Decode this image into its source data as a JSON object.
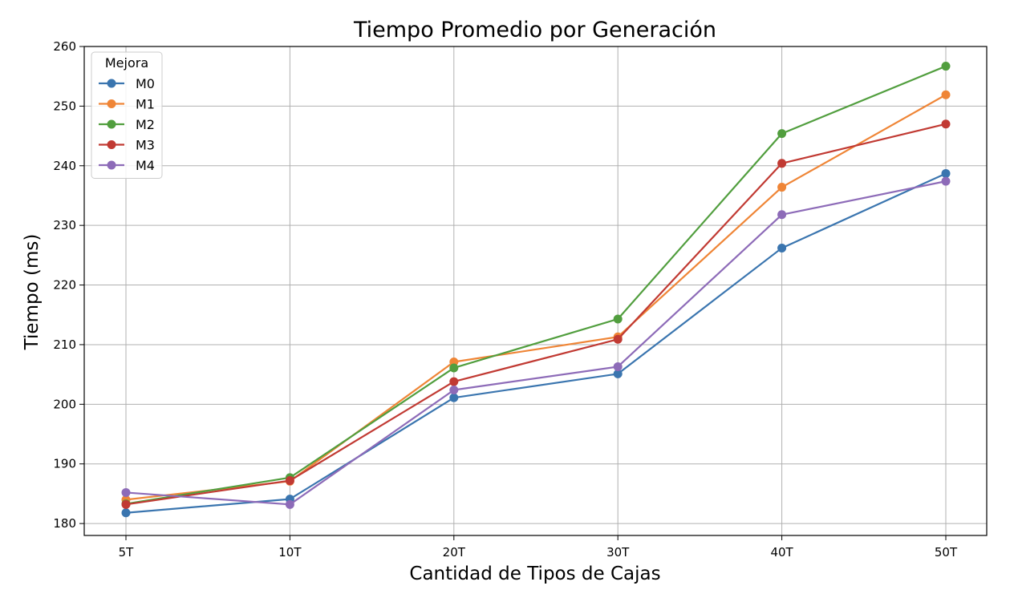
{
  "chart_data": {
    "type": "line",
    "title": "Tiempo Promedio por Generación",
    "xlabel": "Cantidad de Tipos de Cajas",
    "ylabel": "Tiempo (ms)",
    "categories": [
      "5T",
      "10T",
      "20T",
      "30T",
      "40T",
      "50T"
    ],
    "ylim": [
      178,
      260
    ],
    "yticks": [
      180,
      190,
      200,
      210,
      220,
      230,
      240,
      250,
      260
    ],
    "grid": true,
    "legend": {
      "title": "Mejora",
      "placement": "top-left"
    },
    "series": [
      {
        "name": "M0",
        "color": "#3a75af",
        "values": [
          181.8,
          184.1,
          201.1,
          205.1,
          226.2,
          238.7
        ]
      },
      {
        "name": "M1",
        "color": "#ef8536",
        "values": [
          184.0,
          187.1,
          207.1,
          211.3,
          236.4,
          251.9
        ]
      },
      {
        "name": "M2",
        "color": "#519e3e",
        "values": [
          183.3,
          187.7,
          206.1,
          214.3,
          245.4,
          256.7
        ]
      },
      {
        "name": "M3",
        "color": "#c13a33",
        "values": [
          183.2,
          187.2,
          203.8,
          210.9,
          240.4,
          247.0
        ]
      },
      {
        "name": "M4",
        "color": "#8d6bb8",
        "values": [
          185.2,
          183.2,
          202.4,
          206.3,
          231.8,
          237.4
        ]
      }
    ]
  }
}
